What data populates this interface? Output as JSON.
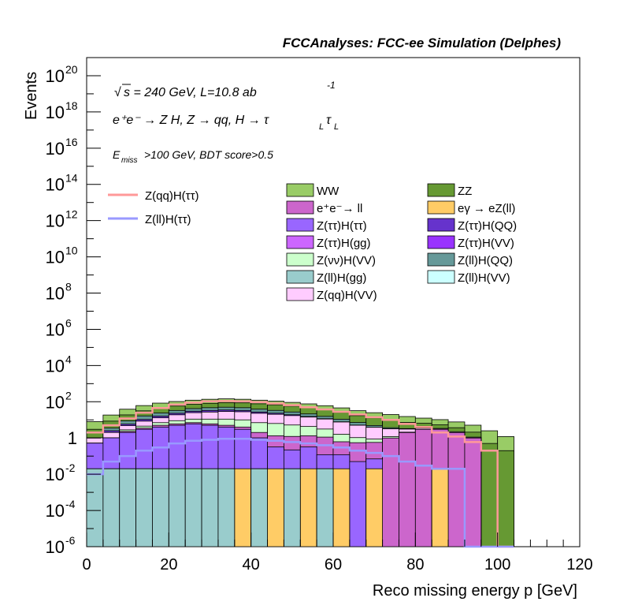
{
  "header": {
    "title": "FCCAnalyses: FCC-ee Simulation (Delphes)"
  },
  "annotations": {
    "sqrt_s": "s = 240 GeV, L=10.8 ab",
    "lumi_exp": "-1",
    "process": "e⁺e⁻ → Z H, Z → qq, H → τ",
    "process_sub": "L",
    "cut_symbol": "E",
    "cut_sub": "miss",
    "cut_text": ">100 GeV, BDT score>0.5"
  },
  "chart_data": {
    "type": "bar",
    "stacked": true,
    "xlabel": "Reco missing energy p [GeV]",
    "ylabel": "Events",
    "xlim": [
      0,
      120
    ],
    "ylim": [
      1e-06,
      1e+21
    ],
    "yscale": "log",
    "grid": false,
    "legend_placement": "top-right",
    "x_ticks": [
      "0",
      "20",
      "40",
      "60",
      "80",
      "100",
      "120"
    ],
    "y_ticks": [
      {
        "value": 1e-06,
        "base": "10",
        "exp": "-6"
      },
      {
        "value": 0.0001,
        "base": "10",
        "exp": "-4"
      },
      {
        "value": 0.01,
        "base": "10",
        "exp": "-2"
      },
      {
        "value": 1,
        "base": "1",
        "exp": ""
      },
      {
        "value": 100.0,
        "base": "10",
        "exp": "2"
      },
      {
        "value": 10000.0,
        "base": "10",
        "exp": "4"
      },
      {
        "value": 1000000.0,
        "base": "10",
        "exp": "6"
      },
      {
        "value": 100000000.0,
        "base": "10",
        "exp": "8"
      },
      {
        "value": 10000000000.0,
        "base": "10",
        "exp": "10"
      },
      {
        "value": 1000000000000.0,
        "base": "10",
        "exp": "12"
      },
      {
        "value": 100000000000000.0,
        "base": "10",
        "exp": "14"
      },
      {
        "value": 1e+16,
        "base": "10",
        "exp": "16"
      },
      {
        "value": 1e+18,
        "base": "10",
        "exp": "18"
      },
      {
        "value": 1e+20,
        "base": "10",
        "exp": "20"
      }
    ],
    "bin_edges": [
      0,
      4,
      8,
      12,
      16,
      20,
      24,
      28,
      32,
      36,
      40,
      44,
      48,
      52,
      56,
      60,
      64,
      68,
      72,
      76,
      80,
      84,
      88,
      92,
      96,
      100,
      104
    ],
    "stack_series": [
      {
        "name": "Z(ll)H(gg)",
        "color": "#99cccc",
        "values": [
          0.02,
          0.02,
          0.02,
          0.02,
          0.02,
          0.02,
          0.02,
          0.02,
          0.02,
          0.0,
          0.02,
          0.0,
          0.02,
          0.0,
          0.02,
          0.0,
          0,
          0,
          0,
          0,
          0,
          0,
          0,
          0,
          0,
          0
        ]
      },
      {
        "name": "eγ → eZ(ll)",
        "color": "#ffcc66",
        "values": [
          0,
          0,
          0,
          0,
          0,
          0,
          0,
          0,
          0,
          0.02,
          0,
          0.02,
          0,
          0.02,
          0,
          0.02,
          0,
          0.02,
          0,
          0,
          0,
          0.02,
          0,
          0,
          0,
          0
        ]
      },
      {
        "name": "Z(ττ)H(ττ)",
        "color": "#9966ff",
        "values": [
          0.5,
          1,
          2,
          3,
          4,
          5,
          6,
          5,
          4,
          3,
          1,
          0.3,
          0.2,
          0.3,
          0.1,
          0.1,
          0.05,
          0.05,
          0,
          0,
          0,
          0,
          0,
          0,
          0,
          0
        ]
      },
      {
        "name": "e⁺e⁻→ ll",
        "color": "#cc66cc",
        "values": [
          0,
          0,
          0.3,
          0.5,
          1,
          1,
          1,
          1,
          1,
          1,
          1,
          1,
          1,
          1,
          1,
          0.5,
          0.5,
          0.5,
          1,
          2,
          3,
          3,
          2,
          1,
          0,
          0
        ]
      },
      {
        "name": "Z(νν)H(VV)",
        "color": "#ccffcc",
        "values": [
          0,
          0,
          0.5,
          1,
          2,
          3,
          4,
          5,
          6,
          6,
          5,
          5,
          4,
          3,
          2,
          1,
          0.5,
          0.3,
          0.2,
          0.1,
          0,
          0,
          0,
          0,
          0,
          0
        ]
      },
      {
        "name": "Z(qq)H(VV)",
        "color": "#ffccff",
        "values": [
          0.5,
          1,
          2,
          4,
          6,
          10,
          14,
          16,
          18,
          18,
          16,
          14,
          12,
          10,
          8,
          6,
          4,
          3,
          2,
          1,
          0.5,
          0.3,
          0.2,
          0.1,
          0,
          0
        ]
      },
      {
        "name": "Z(ττ)H(QQ)",
        "color": "#6633cc",
        "values": [
          0,
          0.5,
          1,
          2,
          3,
          4,
          5,
          6,
          6,
          5,
          4,
          3,
          2,
          1,
          0.5,
          0.2,
          0.1,
          0,
          0,
          0,
          0,
          0,
          0,
          0,
          0,
          0
        ]
      },
      {
        "name": "Z(ll)H(QQ)",
        "color": "#669999",
        "values": [
          0,
          1,
          3,
          6,
          8,
          10,
          12,
          14,
          15,
          14,
          12,
          10,
          8,
          6,
          4,
          3,
          2,
          1,
          0.5,
          0.2,
          0,
          0,
          0,
          0,
          0,
          0
        ]
      },
      {
        "name": "ZZ",
        "color": "#669933",
        "values": [
          2,
          5,
          10,
          15,
          20,
          25,
          30,
          35,
          40,
          40,
          38,
          35,
          30,
          25,
          20,
          15,
          10,
          8,
          6,
          4,
          3,
          2,
          1.5,
          1,
          0.5,
          0.2
        ]
      },
      {
        "name": "WW",
        "color": "#99cc66",
        "values": [
          5,
          10,
          20,
          30,
          40,
          45,
          50,
          55,
          55,
          50,
          45,
          40,
          35,
          30,
          25,
          20,
          15,
          12,
          10,
          8,
          6,
          5,
          4,
          3,
          2,
          1
        ]
      }
    ],
    "line_series": [
      {
        "name": "Z(qq)H(ττ)",
        "color": "#ff9999",
        "values": [
          2,
          5,
          12,
          25,
          45,
          70,
          90,
          105,
          110,
          105,
          95,
          80,
          65,
          50,
          38,
          28,
          20,
          14,
          10,
          6,
          4,
          2,
          1.2,
          0.6,
          0.2,
          0
        ]
      },
      {
        "name": "Z(ll)H(ττ)",
        "color": "#9999ff",
        "values": [
          0.01,
          0.05,
          0.1,
          0.2,
          0.3,
          0.5,
          0.7,
          0.8,
          0.9,
          0.9,
          0.8,
          0.7,
          0.6,
          0.5,
          0.4,
          0.3,
          0.2,
          0.15,
          0.1,
          0.05,
          0.03,
          0.02,
          0.02,
          0.0,
          0,
          0
        ]
      }
    ],
    "legend_lines": [
      {
        "name": "Z(qq)H(ττ)",
        "color": "#ff9999"
      },
      {
        "name": "Z(ll)H(ττ)",
        "color": "#9999ff"
      }
    ],
    "legend_boxes": [
      {
        "name": "WW",
        "color": "#99cc66"
      },
      {
        "name": "ZZ",
        "color": "#669933"
      },
      {
        "name": "e⁺e⁻→ ll",
        "color": "#cc66cc"
      },
      {
        "name": "eγ → eZ(ll)",
        "color": "#ffcc66"
      },
      {
        "name": "Z(ττ)H(ττ)",
        "color": "#9966ff"
      },
      {
        "name": "Z(ττ)H(QQ)",
        "color": "#6633cc"
      },
      {
        "name": "Z(ττ)H(gg)",
        "color": "#cc66ff"
      },
      {
        "name": "Z(ττ)H(VV)",
        "color": "#9933ff"
      },
      {
        "name": "Z(νν)H(VV)",
        "color": "#ccffcc"
      },
      {
        "name": "Z(ll)H(QQ)",
        "color": "#669999"
      },
      {
        "name": "Z(ll)H(gg)",
        "color": "#99cccc"
      },
      {
        "name": "Z(ll)H(VV)",
        "color": "#ccffff"
      },
      {
        "name": "Z(qq)H(VV)",
        "color": "#ffccff"
      }
    ]
  }
}
